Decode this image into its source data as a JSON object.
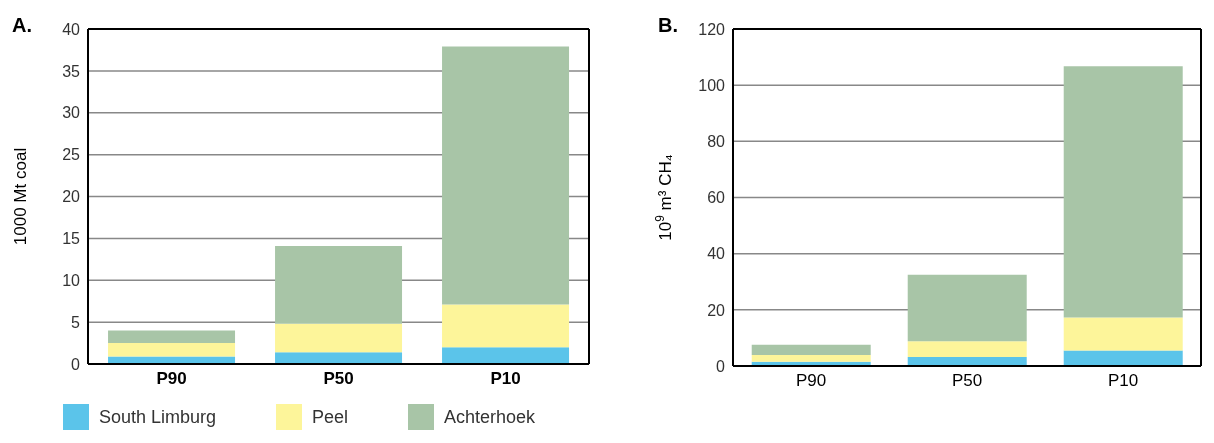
{
  "chart_data": [
    {
      "type": "bar",
      "title": "A.",
      "ylabel": "1000 Mt coal",
      "categories": [
        "P90",
        "P50",
        "P10"
      ],
      "stacked": true,
      "series": [
        {
          "name": "South Limburg",
          "color": "#5bc4ea",
          "values": [
            0.9,
            1.4,
            2.0
          ]
        },
        {
          "name": "Peel",
          "color": "#fdf59a",
          "values": [
            1.6,
            3.4,
            5.1
          ]
        },
        {
          "name": "Achterhoek",
          "color": "#a8c5a7",
          "values": [
            1.5,
            9.3,
            30.8
          ]
        }
      ],
      "ylim": [
        0,
        40
      ],
      "yticks": [
        0,
        5,
        10,
        15,
        20,
        25,
        30,
        35,
        40
      ],
      "grid": "y",
      "legend": "bottom"
    },
    {
      "type": "bar",
      "title": "B.",
      "ylabel": "10$^{9}$ m³ CH₄",
      "categories": [
        "P90",
        "P50",
        "P10"
      ],
      "stacked": true,
      "series": [
        {
          "color": "#5bc4ea",
          "values": [
            1.5,
            3.2,
            5.5
          ]
        },
        {
          "color": "#fdf59a",
          "values": [
            2.4,
            5.6,
            11.8
          ]
        },
        {
          "color": "#a8c5a7",
          "values": [
            3.7,
            23.7,
            89.4
          ]
        }
      ],
      "ylim": [
        0,
        120
      ],
      "yticks": [
        0,
        20,
        40,
        60,
        80,
        100,
        120
      ],
      "grid": "y",
      "legend": false
    }
  ]
}
